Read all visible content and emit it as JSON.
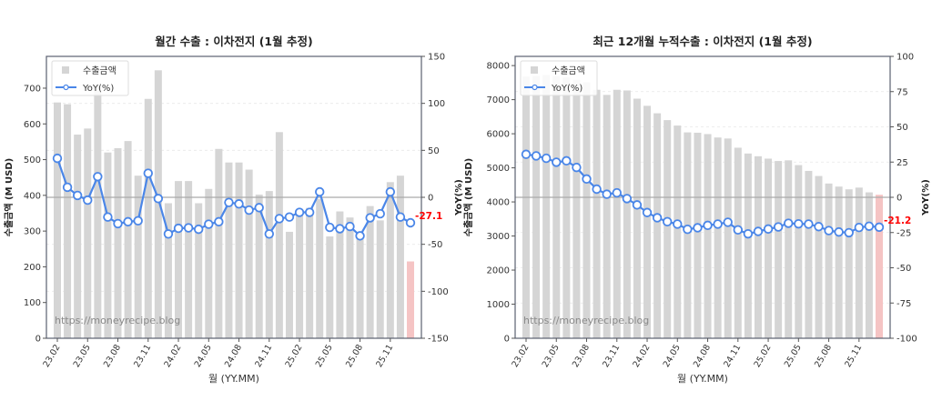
{
  "chart_data": [
    {
      "type": "bar+line",
      "title": "월간 수출 : 이차전지 (1월 추정)",
      "xlabel": "월 (YY.MM)",
      "ylabel": "수출금액 (M USD)",
      "y2label": "YoY(%)",
      "ylim": [
        0,
        789
      ],
      "y2lim": [
        -150,
        150
      ],
      "yticks": [
        0,
        100,
        200,
        300,
        400,
        500,
        600,
        700
      ],
      "y2ticks": [
        -150,
        -100,
        -50,
        0,
        50,
        100,
        150
      ],
      "legend": {
        "placement": "top-left",
        "entries": [
          "수출금액",
          "YoY(%)"
        ]
      },
      "watermark": "https://moneyrecipe.blog",
      "last_label": "-27.1",
      "xtick_labels": [
        "23.02",
        "23.05",
        "23.08",
        "23.11",
        "24.02",
        "24.05",
        "24.08",
        "24.11",
        "25.02",
        "25.05",
        "25.08",
        "25.11"
      ],
      "categories": [
        "23.02",
        "23.03",
        "23.04",
        "23.05",
        "23.06",
        "23.07",
        "23.08",
        "23.09",
        "23.10",
        "23.11",
        "23.12",
        "24.01",
        "24.02",
        "24.03",
        "24.04",
        "24.05",
        "24.06",
        "24.07",
        "24.08",
        "24.09",
        "24.10",
        "24.11",
        "24.12",
        "25.01",
        "25.02",
        "25.03",
        "25.04",
        "25.05",
        "25.06",
        "25.07",
        "25.08",
        "25.09",
        "25.10",
        "25.11",
        "25.12",
        "26.01"
      ],
      "series": [
        {
          "name": "수출금액",
          "type": "bar",
          "values": [
            660,
            655,
            570,
            587,
            705,
            520,
            532,
            552,
            455,
            670,
            750,
            378,
            440,
            440,
            378,
            418,
            530,
            492,
            492,
            472,
            402,
            412,
            577,
            298,
            360,
            365,
            390,
            285,
            355,
            338,
            290,
            370,
            330,
            437,
            455,
            215
          ]
        },
        {
          "name": "YoY(%)",
          "type": "line",
          "axis": "right",
          "values": [
            41.5,
            10.7,
            2,
            -3,
            22,
            -21,
            -28,
            -26,
            -25,
            25.6,
            -1.3,
            -39,
            -33,
            -32.5,
            -34,
            -28.6,
            -26,
            -5.5,
            -7,
            -13.6,
            -11,
            -39,
            -22.7,
            -21,
            -16,
            -16,
            5.8,
            -32,
            -33.4,
            -31,
            -41,
            -21.8,
            -17.5,
            5.8,
            -21,
            -27.1
          ]
        }
      ],
      "grid": "horizontal dashed (right axis)",
      "colors": {
        "bar": "#d5d5d5",
        "bar_last": "#f5c4c4",
        "line": "#4a86e8",
        "zero_line": "#aaaaaa",
        "last_label": "#ff0000"
      }
    },
    {
      "type": "bar+line",
      "title": "최근 12개월 누적수출 : 이차전지 (1월 추정)",
      "xlabel": "월 (YY.MM)",
      "ylabel": "수출금액 (M USD)",
      "y2label": "YoY(%)",
      "ylim": [
        0,
        8270
      ],
      "y2lim": [
        -100,
        100
      ],
      "yticks": [
        0,
        1000,
        2000,
        3000,
        4000,
        5000,
        6000,
        7000,
        8000
      ],
      "y2ticks": [
        -100,
        -75,
        -50,
        -25,
        0,
        25,
        50,
        75,
        100
      ],
      "legend": {
        "placement": "top-left",
        "entries": [
          "수출금액",
          "YoY(%)"
        ]
      },
      "watermark": "https://moneyrecipe.blog",
      "last_label": "-21.2",
      "xtick_labels": [
        "23.02",
        "23.05",
        "23.08",
        "23.11",
        "24.02",
        "24.05",
        "24.08",
        "24.11",
        "25.02",
        "25.05",
        "25.08",
        "25.11"
      ],
      "categories": [
        "23.02",
        "23.03",
        "23.04",
        "23.05",
        "23.06",
        "23.07",
        "23.08",
        "23.09",
        "23.10",
        "23.11",
        "23.12",
        "24.01",
        "24.02",
        "24.03",
        "24.04",
        "24.05",
        "24.06",
        "24.07",
        "24.08",
        "24.09",
        "24.10",
        "24.11",
        "24.12",
        "25.01",
        "25.02",
        "25.03",
        "25.04",
        "25.05",
        "25.06",
        "25.07",
        "25.08",
        "25.09",
        "25.10",
        "25.11",
        "25.12",
        "26.01"
      ],
      "series": [
        {
          "name": "수출금액",
          "type": "bar",
          "values": [
            7680,
            7700,
            7720,
            7700,
            7650,
            7580,
            7510,
            7290,
            7140,
            7290,
            7270,
            7030,
            6820,
            6600,
            6400,
            6240,
            6040,
            6030,
            5990,
            5890,
            5860,
            5590,
            5420,
            5340,
            5270,
            5200,
            5220,
            5080,
            4910,
            4760,
            4540,
            4450,
            4370,
            4420,
            4280,
            4210
          ]
        },
        {
          "name": "YoY(%)",
          "type": "line",
          "axis": "right",
          "values": [
            30.5,
            29.4,
            27.7,
            24.9,
            25.9,
            21.2,
            13,
            5.8,
            2.2,
            3.2,
            -0.9,
            -5.4,
            -10.8,
            -14.5,
            -17.3,
            -19,
            -22.7,
            -21.6,
            -19.9,
            -19,
            -17.7,
            -23.1,
            -25.9,
            -24.2,
            -22.5,
            -21,
            -18.4,
            -18.8,
            -19,
            -20.8,
            -23.6,
            -24.6,
            -25.1,
            -21.4,
            -20.5,
            -21.2
          ]
        }
      ],
      "grid": "horizontal dashed (right axis)",
      "colors": {
        "bar": "#d5d5d5",
        "bar_last": "#f5c4c4",
        "line": "#4a86e8",
        "zero_line": "#aaaaaa",
        "last_label": "#ff0000"
      }
    }
  ]
}
